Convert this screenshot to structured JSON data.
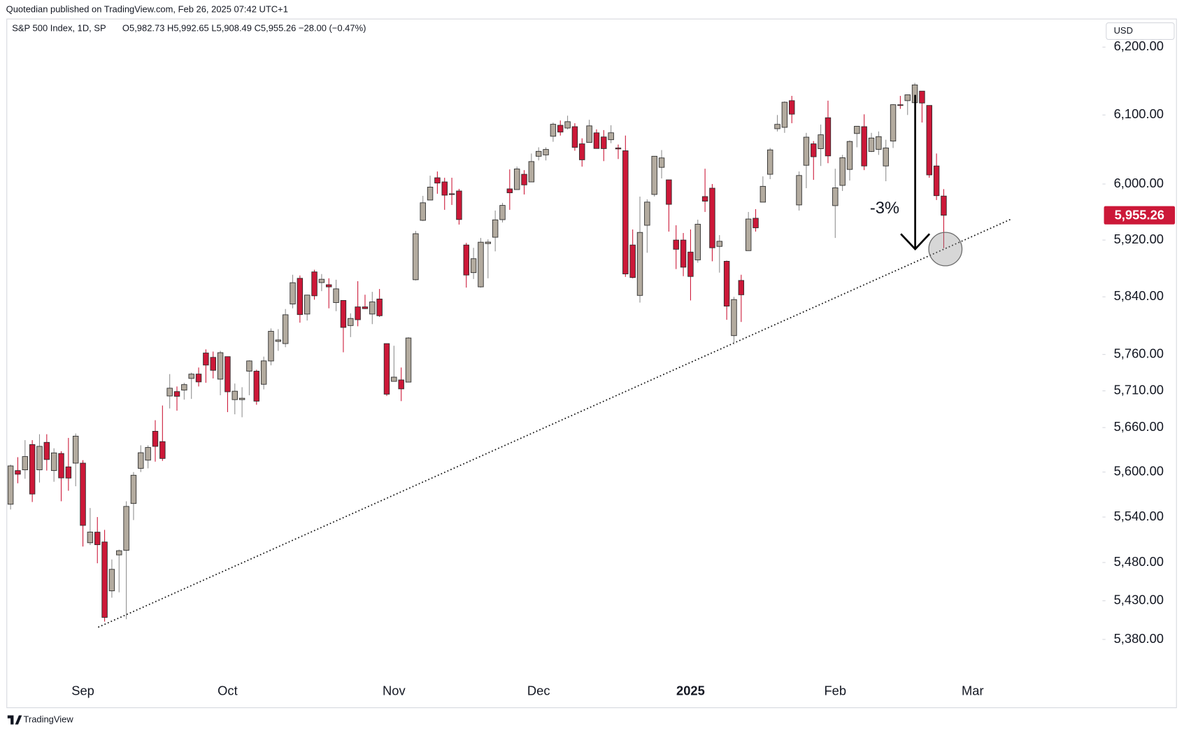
{
  "header": {
    "published": "Quotedian published on TradingView.com, Feb 26, 2025 07:42 UTC+1",
    "footer": "TradingView"
  },
  "chart_data": {
    "type": "candlestick",
    "title": "S&P 500 Index, 1D, SP",
    "legend_ohlc": "O5,982.73 H5,992.65 L5,908.49 C5,955.26 −28.00 (−0.47%)",
    "currency": "USD",
    "annotation": "-3%",
    "log_scale": true,
    "grid": false,
    "up_color": "#b3ab9f",
    "down_color": "#cc1838",
    "categories": [
      null,
      null,
      null,
      null,
      null,
      null,
      null,
      null,
      null,
      null,
      "Sep",
      null,
      null,
      null,
      null,
      null,
      null,
      null,
      null,
      null,
      null,
      null,
      null,
      null,
      null,
      null,
      null,
      null,
      null,
      null,
      "Oct",
      null,
      null,
      null,
      null,
      null,
      null,
      null,
      null,
      null,
      null,
      null,
      null,
      null,
      null,
      null,
      null,
      null,
      null,
      null,
      null,
      null,
      null,
      "Nov",
      null,
      null,
      null,
      null,
      null,
      null,
      null,
      null,
      null,
      null,
      null,
      null,
      null,
      null,
      null,
      null,
      null,
      null,
      null,
      "Dec",
      null,
      null,
      null,
      null,
      null,
      null,
      null,
      null,
      null,
      null,
      null,
      null,
      null,
      null,
      null,
      null,
      null,
      null,
      null,
      null,
      "2025",
      null,
      null,
      null,
      null,
      null,
      null,
      null,
      null,
      null,
      null,
      null,
      null,
      null,
      null,
      null,
      null,
      null,
      null,
      null,
      "Feb",
      null,
      null,
      null,
      null,
      null,
      null,
      null,
      null,
      null,
      null,
      null,
      null,
      null,
      null,
      null,
      null,
      null,
      null,
      "Mar"
    ],
    "open": [
      5557,
      5602,
      5603,
      5637,
      5603,
      5640,
      5602,
      5625,
      5607,
      5612,
      5612,
      5506,
      5520,
      5507,
      5443,
      5490,
      5496,
      5558,
      5605,
      5616,
      5655,
      5641,
      5703,
      5709,
      5711,
      5727,
      5733,
      5762,
      5756,
      5726,
      5757,
      5698,
      5698,
      5737,
      5737,
      5719,
      5751,
      5778,
      5775,
      5830,
      5866,
      5816,
      5875,
      5860,
      5857,
      5832,
      5835,
      5800,
      5826,
      5826,
      5816,
      5837,
      5775,
      5723,
      5725,
      5722,
      5864,
      5948,
      5977,
      6009,
      6003,
      5986,
      5990,
      5913,
      5874,
      5854,
      5915,
      5924,
      5949,
      5993,
      5992,
      6014,
      6003,
      6040,
      6042,
      6069,
      6085,
      6081,
      6083,
      6058,
      6060,
      6074,
      6068,
      6064,
      6052,
      6048,
      5913,
      5842,
      5941,
      5985,
      6024,
      6006,
      5920,
      5920,
      5903,
      5892,
      5982,
      5994,
      5911,
      5890,
      5786,
      5863,
      5905,
      5951,
      5974,
      6014,
      6080,
      6082,
      6121,
      5970,
      6027,
      6058,
      6051,
      6096,
      5969,
      5998,
      6021,
      6073,
      6083,
      6047,
      6050,
      6026,
      6062,
      6115,
      6121,
      6118,
      6135,
      6114,
      6026,
      5982.73,
      null,
      null,
      null,
      null
    ],
    "high": [
      5610,
      5620,
      5643,
      5643,
      5651,
      5651,
      5632,
      5628,
      5646,
      5652,
      5616,
      5552,
      5540,
      5523,
      5484,
      5497,
      5561,
      5600,
      5636,
      5636,
      5670,
      5690,
      5733,
      5716,
      5721,
      5735,
      5742,
      5767,
      5764,
      5765,
      5757,
      5720,
      5715,
      5752,
      5739,
      5757,
      5796,
      5795,
      5823,
      5871,
      5870,
      5843,
      5878,
      5872,
      5866,
      5864,
      5835,
      5817,
      5862,
      5843,
      5847,
      5851,
      5775,
      5772,
      5742,
      5784,
      5933,
      5983,
      6012,
      6018,
      6009,
      6009,
      5993,
      5916,
      5909,
      5923,
      5921,
      5962,
      5973,
      6021,
      6025,
      6020,
      6044,
      6053,
      6053,
      6089,
      6092,
      6099,
      6088,
      6066,
      6093,
      6079,
      6078,
      6085,
      6057,
      6070,
      5935,
      5982,
      5978,
      6040,
      6049,
      6006,
      5941,
      5930,
      5935,
      5949,
      6022,
      6000,
      5927,
      5891,
      5840,
      5871,
      5960,
      5964,
      6011,
      6052,
      6100,
      6120,
      6128,
      6018,
      6074,
      6062,
      6086,
      6121,
      6022,
      6042,
      6063,
      6084,
      6101,
      6074,
      6076,
      6064,
      6116,
      6128,
      6130,
      6147,
      6135,
      6114,
      6044,
      5992.65,
      null,
      null,
      null,
      null
    ],
    "low": [
      5550,
      5585,
      5591,
      5560,
      5586,
      5602,
      5587,
      5561,
      5575,
      5581,
      5501,
      5503,
      5479,
      5403,
      5434,
      5441,
      5406,
      5536,
      5600,
      5605,
      5614,
      5615,
      5686,
      5683,
      5698,
      5699,
      5716,
      5721,
      5727,
      5704,
      5681,
      5678,
      5674,
      5704,
      5691,
      5712,
      5745,
      5765,
      5770,
      5824,
      5804,
      5807,
      5836,
      5848,
      5824,
      5820,
      5763,
      5784,
      5799,
      5823,
      5802,
      5812,
      5703,
      5723,
      5696,
      5722,
      5863,
      5947,
      5977,
      5986,
      5963,
      5970,
      5942,
      5853,
      5865,
      5853,
      5866,
      5904,
      5945,
      5963,
      5992,
      5985,
      6003,
      6034,
      6034,
      6061,
      6070,
      6079,
      6048,
      6025,
      6060,
      6051,
      6033,
      6059,
      6036,
      5868,
      5866,
      5832,
      5902,
      5982,
      6008,
      5932,
      5879,
      5869,
      5835,
      5888,
      5960,
      5890,
      5874,
      5808,
      5774,
      5805,
      5905,
      5932,
      5974,
      6007,
      6076,
      6074,
      6088,
      5962,
      5994,
      6006,
      6026,
      6030,
      5923,
      5990,
      6005,
      6053,
      6020,
      6046,
      6042,
      6004,
      6052,
      6109,
      6100,
      6111,
      6089,
      6009,
      5977,
      5908.49,
      null,
      null,
      null,
      null
    ],
    "close": [
      5608.25,
      5597.12,
      5620.85,
      5570.64,
      5634.61,
      5616.84,
      5625.8,
      5592.18,
      5591.96,
      5648.4,
      5528.93,
      5520.07,
      5503.41,
      5408.42,
      5471.05,
      5495.52,
      5554.13,
      5595.76,
      5626.02,
      5633.09,
      5634.58,
      5618.26,
      5713.64,
      5702.55,
      5718.57,
      5732.93,
      5722.26,
      5745.37,
      5738.17,
      5762.48,
      5708.75,
      5709.54,
      5699.94,
      5751.07,
      5695.94,
      5751.13,
      5792.04,
      5780.05,
      5815.03,
      5859.85,
      5815.26,
      5842.47,
      5841.47,
      5864.67,
      5853.98,
      5851.2,
      5797.42,
      5809.86,
      5808.12,
      5823.52,
      5832.92,
      5813.67,
      5705.45,
      5728.8,
      5712.69,
      5782.76,
      5929.04,
      5973.1,
      5995.54,
      6001.35,
      5983.99,
      5985.38,
      5949.17,
      5870.62,
      5893.62,
      5916.98,
      5917.11,
      5948.71,
      5969.34,
      5987.37,
      6021.63,
      5998.74,
      6032.38,
      6047.15,
      6049.88,
      6086.49,
      6075.11,
      6090.27,
      6052.85,
      6034.91,
      6084.19,
      6051.25,
      6051.09,
      6074.08,
      6050.61,
      5872.16,
      5867.08,
      5930.85,
      5974.07,
      6040.04,
      6037.59,
      5970.84,
      5906.94,
      5881.63,
      5868.55,
      5942.47,
      5975.38,
      5909.03,
      5918.25,
      5827.04,
      5836.22,
      5842.91,
      5949.91,
      5937.34,
      5996.66,
      6049.24,
      6086.37,
      6118.71,
      6101.24,
      6012.28,
      6067.7,
      6039.31,
      6071.17,
      6040.53,
      5994.57,
      6037.88,
      6061.48,
      6083.57,
      6025.99,
      6066.44,
      6068.5,
      6051.97,
      6115.07,
      6114.63,
      6129.58,
      6144.15,
      6117.52,
      6013.13,
      5983.25,
      5955.26,
      null,
      null,
      null,
      null
    ],
    "last_price": {
      "value": 5955.26,
      "label": "5,955.26"
    },
    "ylim": [
      5328.4,
      6241.9
    ],
    "yticks": [
      {
        "value": 5380,
        "label": "5,380.00"
      },
      {
        "value": 5430,
        "label": "5,430.00"
      },
      {
        "value": 5480,
        "label": "5,480.00"
      },
      {
        "value": 5540,
        "label": "5,540.00"
      },
      {
        "value": 5600,
        "label": "5,600.00"
      },
      {
        "value": 5660,
        "label": "5,660.00"
      },
      {
        "value": 5710,
        "label": "5,710.00"
      },
      {
        "value": 5760,
        "label": "5,760.00"
      },
      {
        "value": 5840,
        "label": "5,840.00"
      },
      {
        "value": 5920,
        "label": "5,920.00"
      },
      {
        "value": 6000,
        "label": "6,000.00"
      },
      {
        "value": 6100,
        "label": "6,100.00"
      },
      {
        "value": 6200,
        "label": "6,200.00"
      }
    ]
  }
}
